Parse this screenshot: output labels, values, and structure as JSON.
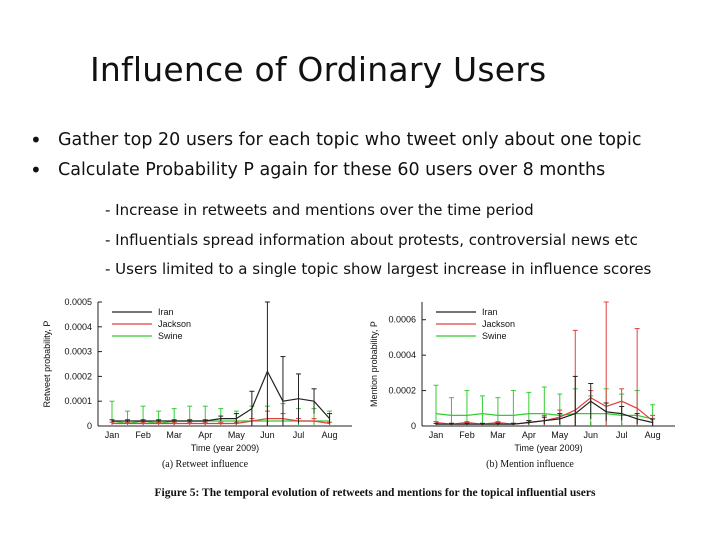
{
  "slide": {
    "title": "Influence of Ordinary Users",
    "bullets": [
      "Gather top 20 users for each topic who tweet only about one topic",
      "Calculate Probability P again for these 60 users over 8 months"
    ],
    "sub_points": [
      "- Increase in retweets and mentions over the time period",
      "- Influentials spread information about protests, controversial news etc",
      "- Users limited to a single topic show largest increase in influence scores"
    ]
  },
  "figure_caption": "Figure 5: The temporal evolution of retweets and mentions for the topical influential users",
  "colors": {
    "Iran": "#222222",
    "Jackson": "#e04040",
    "Swine": "#33cc33"
  },
  "chart_data": [
    {
      "type": "line",
      "caption": "(a) Retweet influence",
      "xlabel": "Time (year 2009)",
      "ylabel": "Retweet probability, P",
      "ylim": [
        0,
        0.0005
      ],
      "yticks": [
        0,
        0.0001,
        0.0002,
        0.0003,
        0.0004,
        0.0005
      ],
      "ytick_labels": [
        "0",
        "0.0001",
        "0.0002",
        "0.0003",
        "0.0004",
        "0.0005"
      ],
      "categories": [
        "Jan",
        "Feb",
        "Mar",
        "Apr",
        "May",
        "Jun",
        "Jul",
        "Aug"
      ],
      "x": [
        0,
        0.5,
        1,
        1.5,
        2,
        2.5,
        3,
        3.5,
        4,
        4.5,
        5,
        5.5,
        6,
        6.5,
        7
      ],
      "legend": "top-left",
      "series": [
        {
          "name": "Iran",
          "values": [
            2e-05,
            2e-05,
            2e-05,
            2e-05,
            2e-05,
            2e-05,
            2e-05,
            3e-05,
            3e-05,
            7e-05,
            0.00022,
            0.0001,
            0.00011,
            0.0001,
            3e-05
          ],
          "errors": [
            5e-06,
            5e-06,
            5e-06,
            5e-06,
            5e-06,
            5e-06,
            5e-06,
            1e-05,
            2e-05,
            7e-05,
            0.00047,
            0.00018,
            0.0001,
            5e-05,
            2e-05
          ]
        },
        {
          "name": "Jackson",
          "values": [
            1e-05,
            1e-05,
            1e-05,
            1e-05,
            1e-05,
            1e-05,
            1e-05,
            1e-05,
            1e-05,
            2e-05,
            3e-05,
            3e-05,
            2e-05,
            2e-05,
            1e-05
          ],
          "errors": [
            5e-06,
            5e-06,
            5e-06,
            5e-06,
            5e-06,
            5e-06,
            5e-06,
            5e-06,
            5e-06,
            1e-05,
            3e-05,
            2e-05,
            1e-05,
            1e-05,
            5e-06
          ]
        },
        {
          "name": "Swine",
          "values": [
            2e-05,
            1e-05,
            2e-05,
            1e-05,
            2e-05,
            2e-05,
            2e-05,
            2e-05,
            2e-05,
            2e-05,
            2e-05,
            2e-05,
            2e-05,
            2e-05,
            2e-05
          ],
          "errors": [
            8e-05,
            5e-05,
            6e-05,
            5e-05,
            5e-05,
            6e-05,
            6e-05,
            5e-05,
            4e-05,
            6e-05,
            6e-05,
            7e-05,
            5e-05,
            5e-05,
            4e-05
          ]
        }
      ]
    },
    {
      "type": "line",
      "caption": "(b) Mention influence",
      "xlabel": "Time (year 2009)",
      "ylabel": "Mention probability, P",
      "ylim": [
        0,
        0.0007
      ],
      "yticks": [
        0,
        0.0002,
        0.0004,
        0.0006
      ],
      "ytick_labels": [
        "0",
        "0.0002",
        "0.0004",
        "0.0006"
      ],
      "categories": [
        "Jan",
        "Feb",
        "Mar",
        "Apr",
        "May",
        "Jun",
        "Jul",
        "Aug"
      ],
      "x": [
        0,
        0.5,
        1,
        1.5,
        2,
        2.5,
        3,
        3.5,
        4,
        4.5,
        5,
        5.5,
        6,
        6.5,
        7
      ],
      "legend": "top-left",
      "series": [
        {
          "name": "Iran",
          "values": [
            1e-05,
            1e-05,
            1e-05,
            1e-05,
            1e-05,
            1e-05,
            2e-05,
            3e-05,
            4e-05,
            7e-05,
            0.00014,
            8e-05,
            7e-05,
            4e-05,
            2e-05
          ],
          "errors": [
            5e-06,
            5e-06,
            5e-06,
            5e-06,
            5e-06,
            5e-06,
            1e-05,
            2e-05,
            3e-05,
            0.00021,
            0.0001,
            5e-05,
            4e-05,
            3e-05,
            2e-05
          ]
        },
        {
          "name": "Jackson",
          "values": [
            2e-05,
            1e-05,
            2e-05,
            1e-05,
            2e-05,
            1e-05,
            2e-05,
            3e-05,
            5e-05,
            9e-05,
            0.00016,
            0.00011,
            0.00014,
            0.0001,
            3e-05
          ],
          "errors": [
            5e-06,
            5e-06,
            5e-06,
            5e-06,
            5e-06,
            5e-06,
            1e-05,
            3e-05,
            4e-05,
            0.00045,
            4e-05,
            0.0006,
            7e-05,
            0.00045,
            3e-05
          ]
        },
        {
          "name": "Swine",
          "values": [
            7e-05,
            6e-05,
            6e-05,
            7e-05,
            6e-05,
            6e-05,
            7e-05,
            7e-05,
            6e-05,
            7e-05,
            7e-05,
            7e-05,
            6e-05,
            6e-05,
            4e-05
          ],
          "errors": [
            0.00016,
            0.0001,
            0.00014,
            0.0001,
            0.0001,
            0.00014,
            0.00012,
            0.00015,
            0.00012,
            0.00014,
            0.0001,
            0.00014,
            0.00012,
            0.00014,
            8e-05
          ]
        }
      ]
    }
  ]
}
